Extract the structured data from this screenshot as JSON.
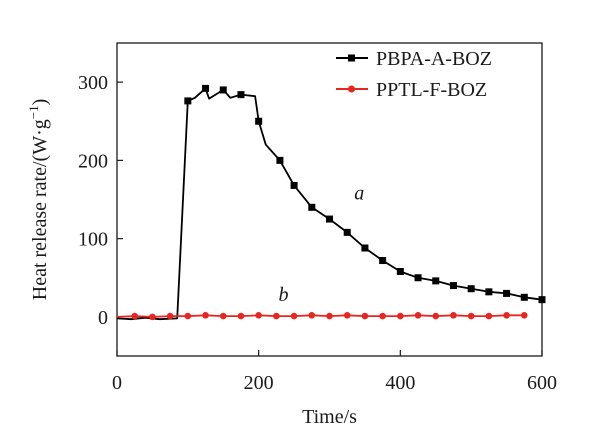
{
  "chart_data": {
    "type": "line",
    "title": "",
    "xlabel": "Time/s",
    "ylabel": "Heat release rate/(W·g",
    "ylabel_sup": "−1",
    "ylabel_close": ")",
    "xlim": [
      0,
      600
    ],
    "ylim": [
      -50,
      350
    ],
    "xticks": [
      0,
      200,
      400,
      600
    ],
    "yticks": [
      0,
      100,
      200,
      300
    ],
    "grid": false,
    "legend_position": "top-right",
    "annotations": [
      {
        "text": "a",
        "x": 335,
        "y": 150
      },
      {
        "text": "b",
        "x": 228,
        "y": 20
      }
    ],
    "series": [
      {
        "name": "PBPA-A-BOZ",
        "color": "#000000",
        "marker": "square",
        "line": [
          [
            0,
            -2
          ],
          [
            20,
            -3
          ],
          [
            40,
            -1
          ],
          [
            60,
            -3
          ],
          [
            85,
            -2
          ],
          [
            100,
            276
          ],
          [
            110,
            280
          ],
          [
            125,
            292
          ],
          [
            130,
            279
          ],
          [
            150,
            290
          ],
          [
            160,
            280
          ],
          [
            175,
            284
          ],
          [
            195,
            282
          ],
          [
            200,
            250
          ],
          [
            210,
            220
          ],
          [
            230,
            200
          ],
          [
            250,
            168
          ],
          [
            275,
            140
          ],
          [
            300,
            125
          ],
          [
            325,
            108
          ],
          [
            350,
            88
          ],
          [
            375,
            72
          ],
          [
            400,
            58
          ],
          [
            425,
            50
          ],
          [
            450,
            46
          ],
          [
            475,
            40
          ],
          [
            500,
            36
          ],
          [
            525,
            32
          ],
          [
            550,
            30
          ],
          [
            575,
            25
          ],
          [
            600,
            22
          ]
        ],
        "markers": [
          [
            100,
            276
          ],
          [
            125,
            292
          ],
          [
            150,
            290
          ],
          [
            175,
            284
          ],
          [
            200,
            250
          ],
          [
            230,
            200
          ],
          [
            250,
            168
          ],
          [
            275,
            140
          ],
          [
            300,
            125
          ],
          [
            325,
            108
          ],
          [
            350,
            88
          ],
          [
            375,
            72
          ],
          [
            400,
            58
          ],
          [
            425,
            50
          ],
          [
            450,
            46
          ],
          [
            475,
            40
          ],
          [
            500,
            36
          ],
          [
            525,
            32
          ],
          [
            550,
            30
          ],
          [
            575,
            25
          ],
          [
            600,
            22
          ]
        ]
      },
      {
        "name": "PPTL-F-BOZ",
        "color": "#e8261f",
        "marker": "circle",
        "line": [
          [
            0,
            0
          ],
          [
            25,
            1
          ],
          [
            50,
            0
          ],
          [
            75,
            1
          ],
          [
            100,
            1
          ],
          [
            125,
            2
          ],
          [
            150,
            1
          ],
          [
            175,
            1
          ],
          [
            200,
            2
          ],
          [
            225,
            1
          ],
          [
            250,
            1
          ],
          [
            275,
            2
          ],
          [
            300,
            1
          ],
          [
            325,
            2
          ],
          [
            350,
            1
          ],
          [
            375,
            1
          ],
          [
            400,
            1
          ],
          [
            425,
            2
          ],
          [
            450,
            1
          ],
          [
            475,
            2
          ],
          [
            500,
            1
          ],
          [
            525,
            1
          ],
          [
            550,
            2
          ],
          [
            575,
            2
          ]
        ],
        "markers": [
          [
            25,
            1
          ],
          [
            50,
            0
          ],
          [
            75,
            1
          ],
          [
            100,
            1
          ],
          [
            125,
            2
          ],
          [
            150,
            1
          ],
          [
            175,
            1
          ],
          [
            200,
            2
          ],
          [
            225,
            1
          ],
          [
            250,
            1
          ],
          [
            275,
            2
          ],
          [
            300,
            1
          ],
          [
            325,
            2
          ],
          [
            350,
            1
          ],
          [
            375,
            1
          ],
          [
            400,
            1
          ],
          [
            425,
            2
          ],
          [
            450,
            1
          ],
          [
            475,
            2
          ],
          [
            500,
            1
          ],
          [
            525,
            1
          ],
          [
            550,
            2
          ],
          [
            575,
            2
          ]
        ]
      }
    ]
  }
}
